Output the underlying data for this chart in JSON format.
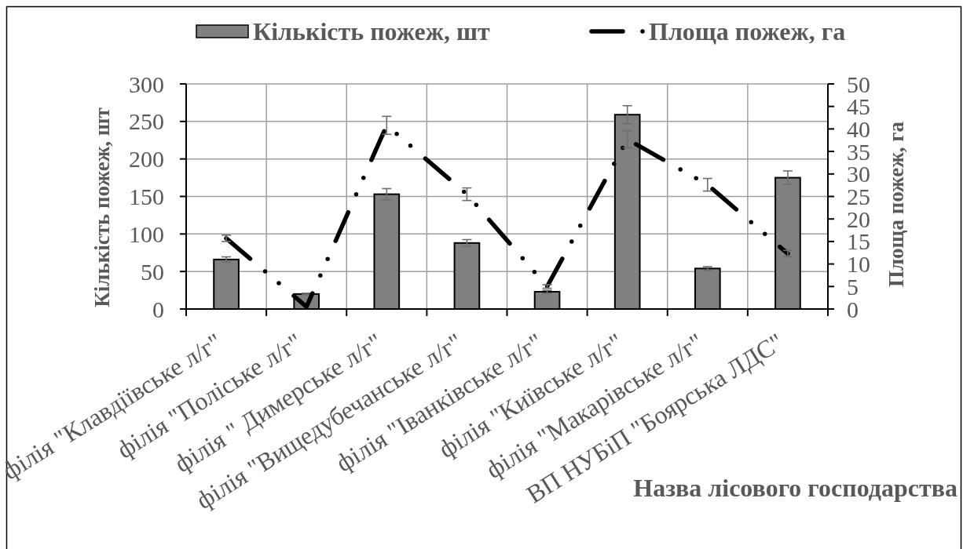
{
  "chart_data": {
    "type": "bar",
    "categories": [
      "філія \"Клавдіївське л/г\"",
      "філія \"Поліське л/г\"",
      "філія \" Димерське л/г\"",
      "філія \"Вищедубечанське л/г\"",
      "філія \"Іванківське л/г\"",
      "філія \"Київське л/г\"",
      "філія \"Макарівське л/г\"",
      "ВП НУБіП \"Боярська ЛДС\""
    ],
    "series": [
      {
        "name": "Кількість пожеж, шт",
        "color": "#808080",
        "values": [
          66,
          20,
          153,
          88,
          23,
          259,
          54,
          175
        ],
        "errors": [
          3.5,
          1,
          7.5,
          4.5,
          2,
          12,
          2.5,
          9
        ]
      },
      {
        "name": "Площа пожеж, га",
        "type": "line",
        "axis": "y2",
        "color": "#000000",
        "line_style": "dashed",
        "values": [
          15.7,
          0.5,
          40.8,
          25.5,
          5.0,
          37.7,
          27.6,
          12.3
        ],
        "errors": [
          0.7,
          null,
          2.0,
          1.4,
          0.4,
          1.9,
          1.4,
          0.7
        ]
      }
    ],
    "xlabel": "Назва лісового господарства",
    "ylabel": "Кількість пожеж, шт",
    "y2label": "Площа пожеж, га",
    "ylim": [
      0,
      300
    ],
    "yticks": [
      0,
      50,
      100,
      150,
      200,
      250,
      300
    ],
    "y2lim": [
      0,
      50
    ],
    "y2ticks": [
      0,
      5,
      10,
      15,
      20,
      25,
      30,
      35,
      40,
      45,
      50
    ],
    "grid": true,
    "legend": "top"
  }
}
